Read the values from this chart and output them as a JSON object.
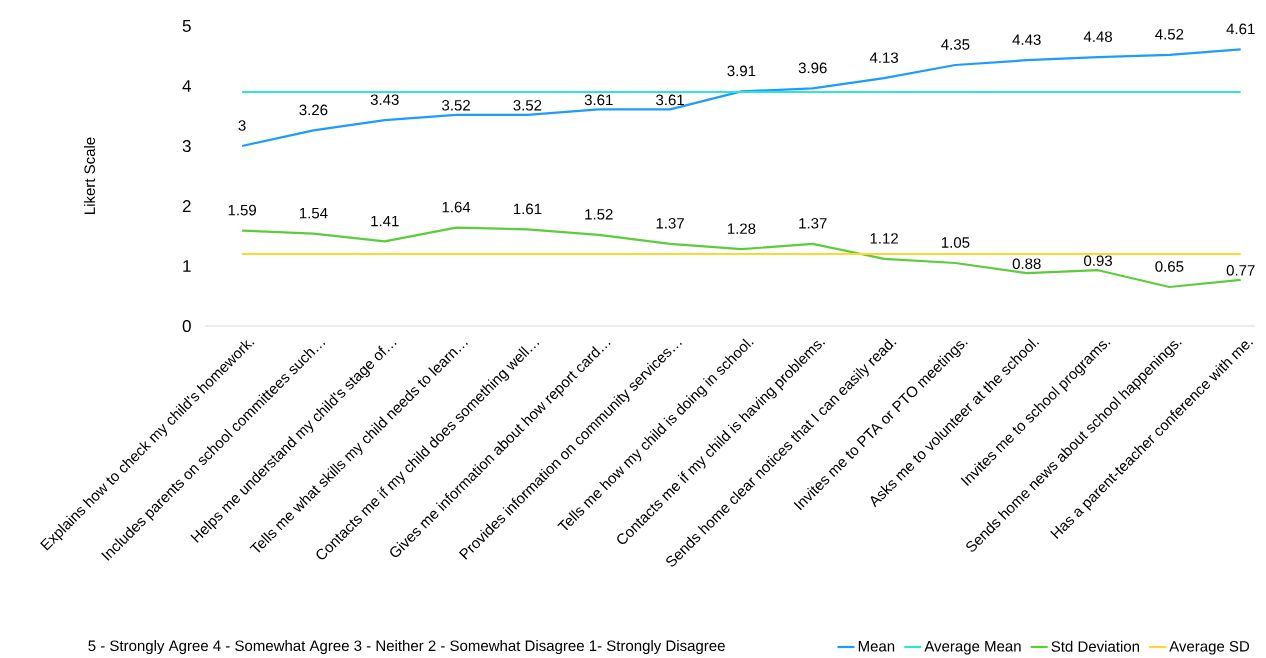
{
  "chart_data": {
    "type": "line",
    "ylabel": "Likert Scale",
    "categories": [
      "Explains how to check my child's homework.",
      "Includes parents on school committees such…",
      "Helps me understand my child's stage of…",
      "Tells me what skills my child needs to learn…",
      "Contacts me if my child does something well…",
      "Gives me information about how report card…",
      "Provides information on community services…",
      "Tells me how my child is doing in school.",
      "Contacts me if my child is having problems.",
      "Sends home clear notices that I can easily read.",
      "Invites me to PTA or PTO meetings.",
      "Asks me to volunteer at the school.",
      "Invites me to school programs.",
      "Sends home news about school happenings.",
      "Has a parent-teacher conference with me."
    ],
    "series": [
      {
        "name": "Mean",
        "color": "#1e9bff",
        "values": [
          3,
          3.26,
          3.43,
          3.52,
          3.52,
          3.61,
          3.61,
          3.91,
          3.96,
          4.13,
          4.35,
          4.43,
          4.48,
          4.52,
          4.61
        ],
        "value_labels": [
          "3",
          "3.26",
          "3.43",
          "3.52",
          "3.52",
          "3.61",
          "3.61",
          "3.91",
          "3.96",
          "4.13",
          "4.35",
          "4.43",
          "4.48",
          "4.52",
          "4.61"
        ]
      },
      {
        "name": "Average Mean",
        "color": "#2ee6d2",
        "values": [
          3.9,
          3.9,
          3.9,
          3.9,
          3.9,
          3.9,
          3.9,
          3.9,
          3.9,
          3.9,
          3.9,
          3.9,
          3.9,
          3.9,
          3.9
        ]
      },
      {
        "name": "Std Deviation",
        "color": "#5ccd3a",
        "values": [
          1.59,
          1.54,
          1.41,
          1.64,
          1.61,
          1.52,
          1.37,
          1.28,
          1.37,
          1.12,
          1.05,
          0.88,
          0.93,
          0.65,
          0.77
        ],
        "value_labels": [
          "1.59",
          "1.54",
          "1.41",
          "1.64",
          "1.61",
          "1.52",
          "1.37",
          "1.28",
          "1.37",
          "1.12",
          "1.05",
          "0.88",
          "0.93",
          "0.65",
          "0.77"
        ]
      },
      {
        "name": "Average SD",
        "color": "#ffd733",
        "values": [
          1.2,
          1.2,
          1.2,
          1.2,
          1.2,
          1.2,
          1.2,
          1.2,
          1.2,
          1.2,
          1.2,
          1.2,
          1.2,
          1.2,
          1.2
        ]
      }
    ],
    "ylim": [
      0,
      5
    ],
    "yticks": [
      0,
      1,
      2,
      3,
      4,
      5
    ],
    "legend": "bottom right",
    "annotations": [
      "5 - Strongly Agree 4 - Somewhat Agree 3 - Neither 2 - Somewhat Disagree 1- Strongly Disagree"
    ]
  }
}
